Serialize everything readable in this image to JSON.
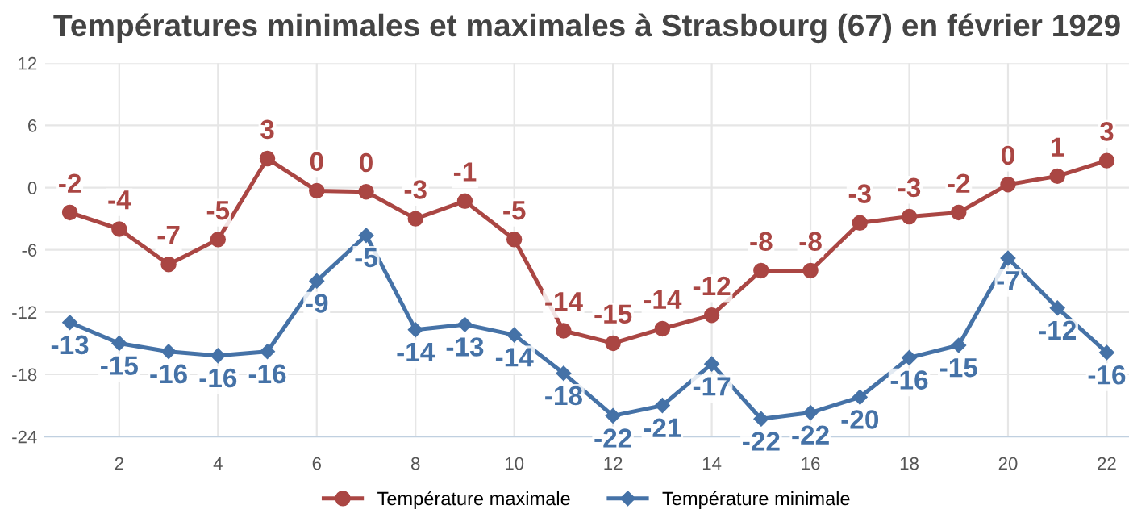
{
  "chart_data": {
    "type": "line",
    "title": "Températures minimales et maximales à Strasbourg (67) en février 1929",
    "x": [
      1,
      2,
      3,
      4,
      5,
      6,
      7,
      8,
      9,
      10,
      11,
      12,
      13,
      14,
      15,
      16,
      17,
      18,
      19,
      20,
      21,
      22
    ],
    "series": [
      {
        "name": "Température maximale",
        "color": "#aa4643",
        "marker": "circle",
        "values": [
          -2.4,
          -4.0,
          -7.4,
          -5.0,
          2.8,
          -0.3,
          -0.4,
          -3.0,
          -1.3,
          -5.0,
          -13.8,
          -15.0,
          -13.6,
          -12.3,
          -8.0,
          -8.0,
          -3.4,
          -2.8,
          -2.4,
          0.3,
          1.1,
          2.6
        ],
        "value_labels": [
          "-2",
          "-4",
          "-7",
          "-5",
          "3",
          "0",
          "0",
          "-3",
          "-1",
          "-5",
          "-14",
          "-15",
          "-14",
          "-12",
          "-8",
          "-8",
          "-3",
          "-3",
          "-2",
          "0",
          "1",
          "3"
        ]
      },
      {
        "name": "Température minimale",
        "color": "#4572a7",
        "marker": "diamond",
        "values": [
          -13.0,
          -15.0,
          -15.8,
          -16.2,
          -15.8,
          -9.0,
          -4.6,
          -13.7,
          -13.2,
          -14.2,
          -17.9,
          -22.0,
          -21.0,
          -17.0,
          -22.3,
          -21.7,
          -20.2,
          -16.4,
          -15.2,
          -6.8,
          -11.6,
          -15.9
        ],
        "value_labels": [
          "-13",
          "-15",
          "-16",
          "-16",
          "-16",
          "-9",
          "-5",
          "-14",
          "-13",
          "-14",
          "-18",
          "-22",
          "-21",
          "-17",
          "-22",
          "-22",
          "-20",
          "-16",
          "-15",
          "-7",
          "-12",
          "-16"
        ]
      }
    ],
    "xlim": [
      0.5,
      22.45
    ],
    "xticks": [
      2,
      4,
      6,
      8,
      10,
      12,
      14,
      16,
      18,
      20,
      22
    ],
    "ylim": [
      -24,
      12
    ],
    "yticks": [
      -24,
      -18,
      -12,
      -6,
      0,
      6,
      12
    ],
    "grid": true,
    "legend": "bottom",
    "line_style": "solid"
  }
}
